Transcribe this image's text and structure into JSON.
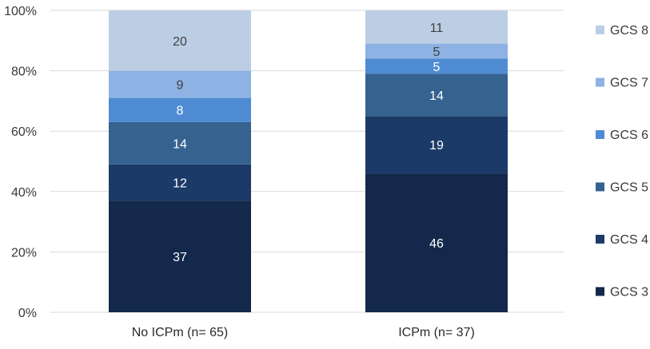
{
  "chart_data": {
    "type": "bar",
    "stacked": true,
    "normalized": true,
    "categories": [
      "No ICPm (n= 65)",
      "ICPm (n= 37)"
    ],
    "series": [
      {
        "name": "GCS 3",
        "values": [
          37,
          46
        ],
        "color": "#13284a"
      },
      {
        "name": "GCS 4",
        "values": [
          12,
          19
        ],
        "color": "#1c3a67"
      },
      {
        "name": "GCS 5",
        "values": [
          14,
          14
        ],
        "color": "#35628f"
      },
      {
        "name": "GCS 6",
        "values": [
          8,
          5
        ],
        "color": "#4e8bd3"
      },
      {
        "name": "GCS 7",
        "values": [
          9,
          5
        ],
        "color": "#8db2e3"
      },
      {
        "name": "GCS 8",
        "values": [
          20,
          11
        ],
        "color": "#bccee4"
      }
    ],
    "ylim": [
      0,
      100
    ],
    "yticks": [
      "0%",
      "20%",
      "40%",
      "60%",
      "80%",
      "100%"
    ],
    "grid": true,
    "legend": "right"
  }
}
